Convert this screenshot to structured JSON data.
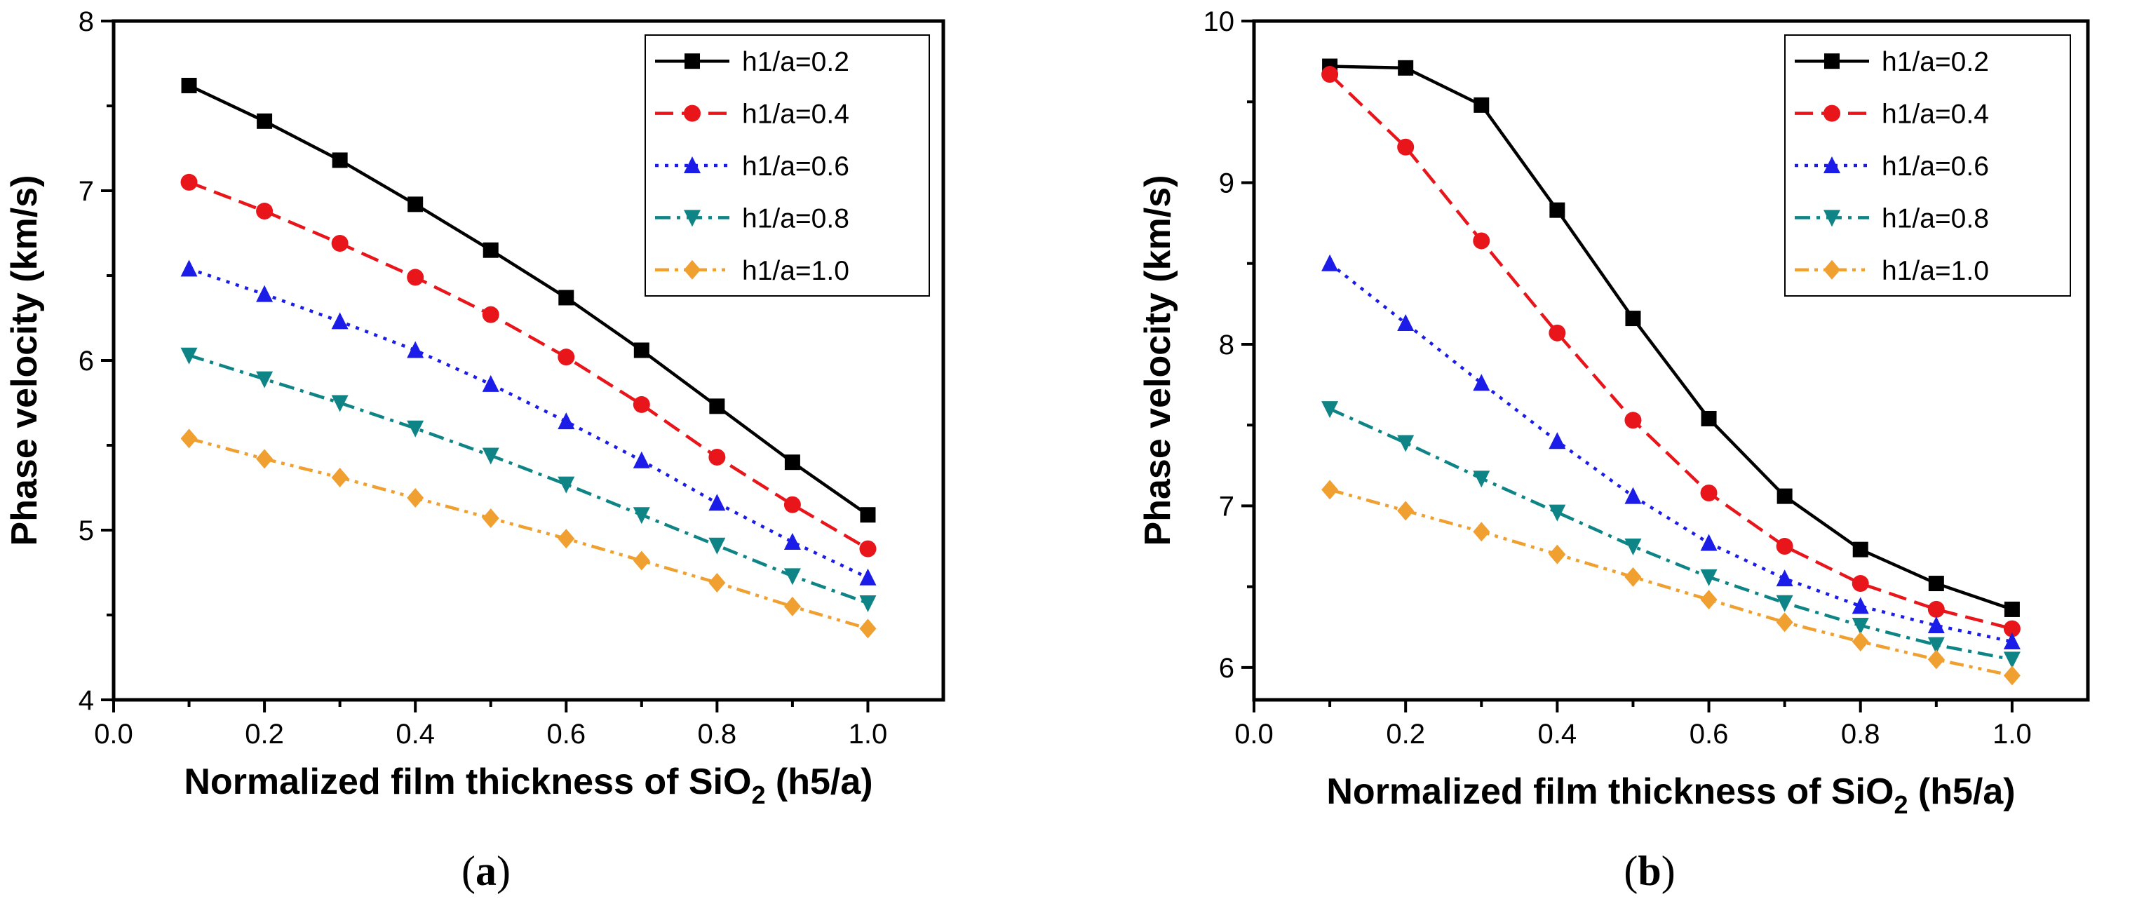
{
  "chart_data": [
    {
      "type": "line",
      "panel_label": "a",
      "xlabel": "Normalized film thickness of SiO",
      "xlabel_subscript": "2",
      "xlabel_suffix": " (h5/a)",
      "ylabel": "Phase velocity (km/s)",
      "xlim": [
        0.0,
        1.1
      ],
      "ylim": [
        4,
        8
      ],
      "xticks": [
        "0.0",
        "0.2",
        "0.4",
        "0.6",
        "0.8",
        "1.0"
      ],
      "yticks": [
        "4",
        "5",
        "6",
        "7",
        "8"
      ],
      "grid": false,
      "legend_position": "top-right",
      "x": [
        0.1,
        0.2,
        0.3,
        0.4,
        0.5,
        0.6,
        0.7,
        0.8,
        0.9,
        1.0
      ],
      "series": [
        {
          "name": "h1/a=0.2",
          "color": "#000000",
          "marker": "square",
          "dash": "solid",
          "values": [
            7.62,
            7.41,
            7.18,
            6.92,
            6.65,
            6.37,
            6.06,
            5.73,
            5.4,
            5.09
          ]
        },
        {
          "name": "h1/a=0.4",
          "color": "#e8151b",
          "marker": "circle",
          "dash": "dash",
          "values": [
            7.05,
            6.88,
            6.69,
            6.49,
            6.27,
            6.02,
            5.74,
            5.43,
            5.15,
            4.89
          ]
        },
        {
          "name": "h1/a=0.6",
          "color": "#1c1ce8",
          "marker": "triangle-up",
          "dash": "dot",
          "values": [
            6.54,
            6.39,
            6.23,
            6.06,
            5.86,
            5.64,
            5.41,
            5.16,
            4.93,
            4.72
          ]
        },
        {
          "name": "h1/a=0.8",
          "color": "#0f8486",
          "marker": "triangle-down",
          "dash": "dashdot",
          "values": [
            6.03,
            5.89,
            5.75,
            5.6,
            5.44,
            5.27,
            5.09,
            4.91,
            4.73,
            4.57
          ]
        },
        {
          "name": "h1/a=1.0",
          "color": "#f0a030",
          "marker": "diamond",
          "dash": "dashdotdot",
          "values": [
            5.54,
            5.42,
            5.31,
            5.19,
            5.07,
            4.95,
            4.82,
            4.69,
            4.55,
            4.42
          ]
        }
      ]
    },
    {
      "type": "line",
      "panel_label": "b",
      "xlabel": "Normalized film thickness of SiO",
      "xlabel_subscript": "2",
      "xlabel_suffix": " (h5/a)",
      "ylabel": "Phase velocity (km/s)",
      "xlim": [
        0.0,
        1.1
      ],
      "ylim": [
        5.8,
        10
      ],
      "xticks": [
        "0.0",
        "0.2",
        "0.4",
        "0.6",
        "0.8",
        "1.0"
      ],
      "yticks": [
        "6",
        "7",
        "8",
        "9",
        "10"
      ],
      "grid": false,
      "legend_position": "top-right",
      "x": [
        0.1,
        0.2,
        0.3,
        0.4,
        0.5,
        0.6,
        0.7,
        0.8,
        0.9,
        1.0
      ],
      "series": [
        {
          "name": "h1/a=0.2",
          "color": "#000000",
          "marker": "square",
          "dash": "solid",
          "values": [
            9.72,
            9.71,
            9.48,
            8.83,
            8.16,
            7.54,
            7.06,
            6.73,
            6.52,
            6.36
          ]
        },
        {
          "name": "h1/a=0.4",
          "color": "#e8151b",
          "marker": "circle",
          "dash": "dash",
          "values": [
            9.67,
            9.22,
            8.64,
            8.07,
            7.53,
            7.08,
            6.75,
            6.52,
            6.36,
            6.24
          ]
        },
        {
          "name": "h1/a=0.6",
          "color": "#1c1ce8",
          "marker": "triangle-up",
          "dash": "dot",
          "values": [
            8.5,
            8.13,
            7.76,
            7.4,
            7.06,
            6.77,
            6.55,
            6.38,
            6.26,
            6.16
          ]
        },
        {
          "name": "h1/a=0.8",
          "color": "#0f8486",
          "marker": "triangle-down",
          "dash": "dashdot",
          "values": [
            7.6,
            7.39,
            7.17,
            6.96,
            6.75,
            6.56,
            6.4,
            6.26,
            6.14,
            6.05
          ]
        },
        {
          "name": "h1/a=1.0",
          "color": "#f0a030",
          "marker": "diamond",
          "dash": "dashdotdot",
          "values": [
            7.1,
            6.97,
            6.84,
            6.7,
            6.56,
            6.42,
            6.28,
            6.16,
            6.05,
            5.95
          ]
        }
      ]
    }
  ]
}
